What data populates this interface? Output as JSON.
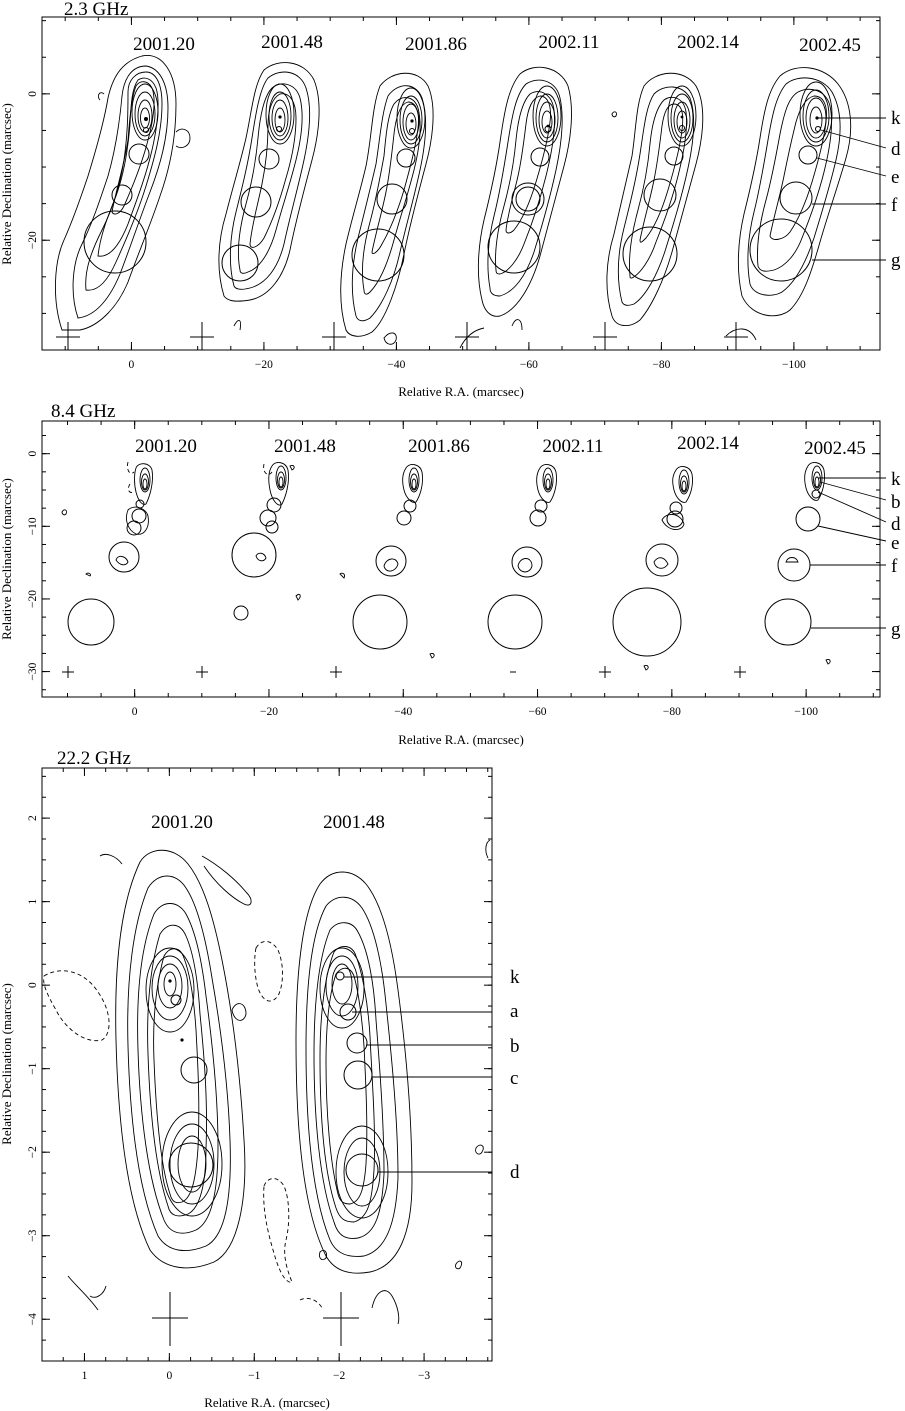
{
  "panels": [
    {
      "id": "p23",
      "freq_label": "2.3 GHz",
      "xlabel": "Relative R.A. (marcsec)",
      "ylabel": "Relative Declination (marcsec)",
      "x_ticks": [
        0,
        -20,
        -40,
        -60,
        -80,
        -100
      ],
      "x_tick_labels": [
        "0",
        "−20",
        "−40",
        "−60",
        "−80",
        "−100"
      ],
      "y_ticks": [
        0,
        -20
      ],
      "y_tick_labels": [
        "0",
        "−20"
      ],
      "xlim": [
        13.5,
        -113
      ],
      "ylim": [
        -35,
        10.5
      ],
      "epochs": [
        "2001.20",
        "2001.48",
        "2001.86",
        "2002.11",
        "2002.14",
        "2002.45"
      ],
      "components": [
        "k",
        "d",
        "e",
        "f",
        "g"
      ]
    },
    {
      "id": "p84",
      "freq_label": "8.4 GHz",
      "xlabel": "Relative R.A. (marcsec)",
      "ylabel": "Relative Declination (marcsec)",
      "x_ticks": [
        0,
        -20,
        -40,
        -60,
        -80,
        -100
      ],
      "x_tick_labels": [
        "0",
        "−20",
        "−40",
        "−60",
        "−80",
        "−100"
      ],
      "y_ticks": [
        0,
        -10,
        -20,
        -30
      ],
      "y_tick_labels": [
        "0",
        "−10",
        "−20",
        "−30"
      ],
      "xlim": [
        13.8,
        -111
      ],
      "ylim": [
        -33.5,
        4.5
      ],
      "epochs": [
        "2001.20",
        "2001.48",
        "2001.86",
        "2002.11",
        "2002.14",
        "2002.45"
      ],
      "components": [
        "k",
        "b",
        "d",
        "e",
        "f",
        "g"
      ]
    },
    {
      "id": "p222",
      "freq_label": "22.2 GHz",
      "xlabel": "Relative R.A. (marcsec)",
      "ylabel": "Relative Declination (marcsec)",
      "x_ticks": [
        1,
        0,
        -1,
        -2,
        -3
      ],
      "x_tick_labels": [
        "1",
        "0",
        "−1",
        "−2",
        "−3"
      ],
      "y_ticks": [
        2,
        1,
        0,
        -1,
        -2,
        -3,
        -4
      ],
      "y_tick_labels": [
        "2",
        "1",
        "0",
        "−1",
        "−2",
        "−3",
        "−4"
      ],
      "xlim": [
        1.5,
        -3.8
      ],
      "ylim": [
        -4.5,
        2.6
      ],
      "epochs": [
        "2001.20",
        "2001.48"
      ],
      "components": [
        "k",
        "a",
        "b",
        "c",
        "d"
      ]
    }
  ]
}
